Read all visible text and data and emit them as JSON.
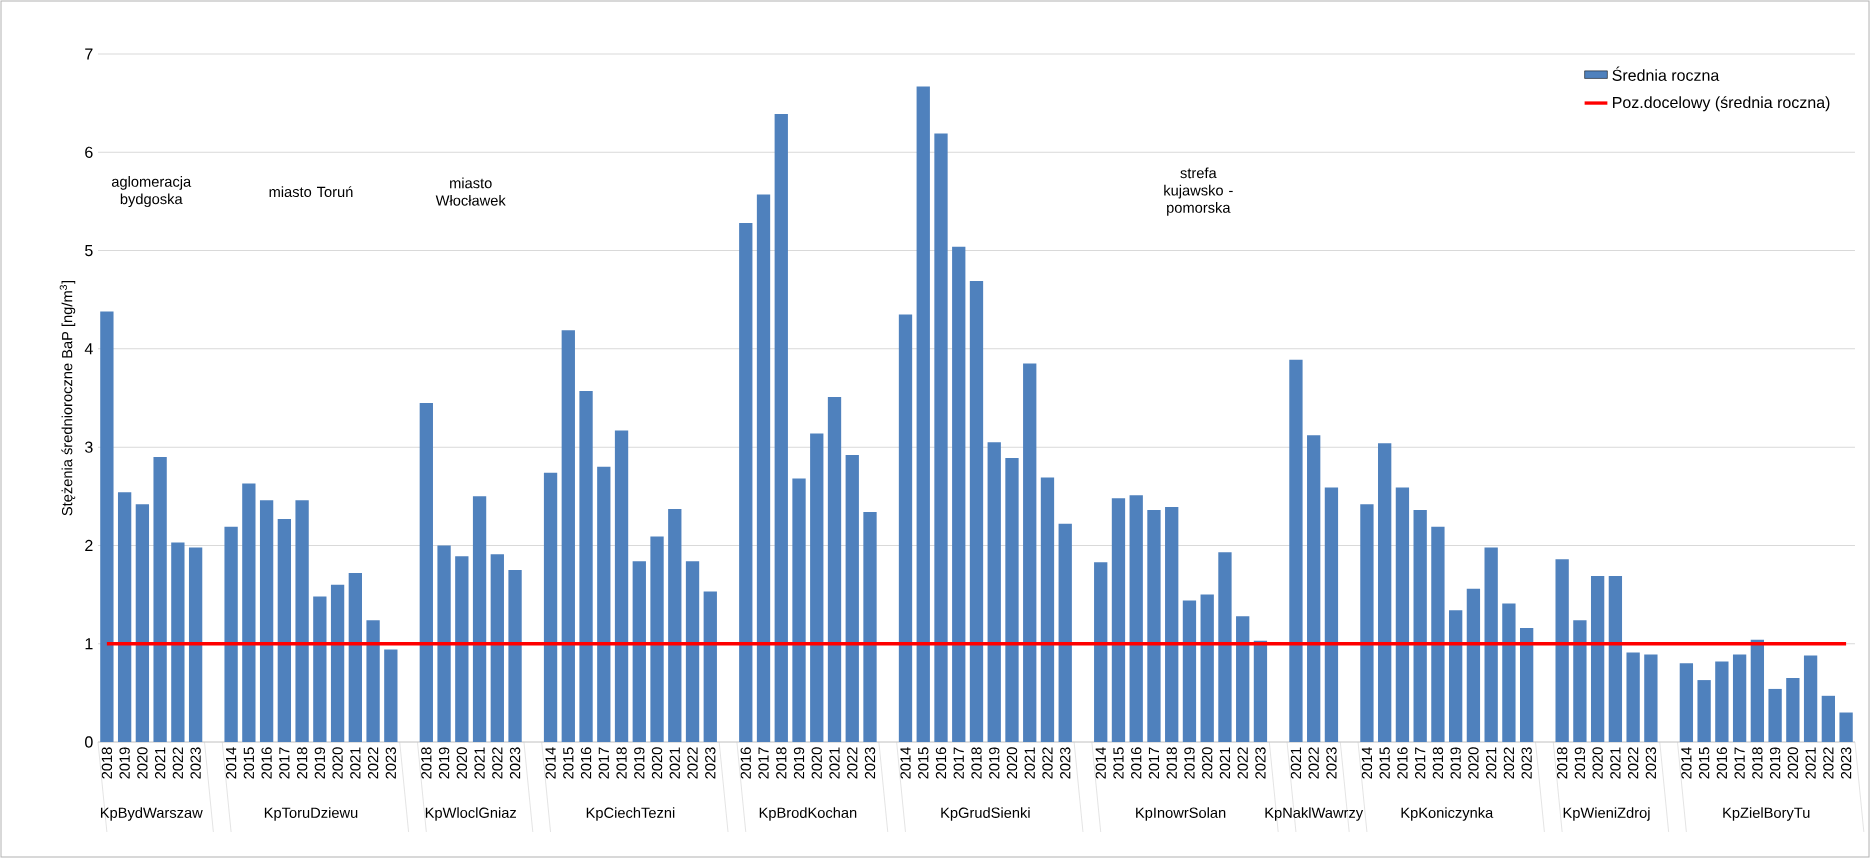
{
  "chart_data": {
    "type": "bar",
    "ylabel": "Stężenia średnioroczne BaP [ng/m$^{3}$]",
    "categories": [
      "2018",
      "2019",
      "2020",
      "2021",
      "2022",
      "2023",
      null,
      "2014",
      "2015",
      "2016",
      "2017",
      "2018",
      "2019",
      "2020",
      "2021",
      "2022",
      "2023",
      null,
      "2018",
      "2019",
      "2020",
      "2021",
      "2022",
      "2023",
      null,
      "2014",
      "2015",
      "2016",
      "2017",
      "2018",
      "2019",
      "2020",
      "2021",
      "2022",
      "2023",
      null,
      "2016",
      "2017",
      "2018",
      "2019",
      "2020",
      "2021",
      "2022",
      "2023",
      null,
      "2014",
      "2015",
      "2016",
      "2017",
      "2018",
      "2019",
      "2020",
      "2021",
      "2022",
      "2023",
      null,
      "2014",
      "2015",
      "2016",
      "2017",
      "2018",
      "2019",
      "2020",
      "2021",
      "2022",
      "2023",
      null,
      "2021",
      "2022",
      "2023",
      null,
      "2014",
      "2015",
      "2016",
      "2017",
      "2018",
      "2019",
      "2020",
      "2021",
      "2022",
      "2023",
      null,
      "2018",
      "2019",
      "2020",
      "2021",
      "2022",
      "2023",
      null,
      "2014",
      "2015",
      "2016",
      "2017",
      "2018",
      "2019",
      "2020",
      "2021",
      "2022",
      "2023"
    ],
    "series": [
      {
        "name": "Średnia roczna",
        "color": "#4f81bd",
        "values": [
          4.38,
          2.54,
          2.42,
          2.9,
          2.03,
          1.98,
          null,
          2.19,
          2.63,
          2.46,
          2.27,
          2.46,
          1.48,
          1.6,
          1.72,
          1.24,
          0.94,
          null,
          3.45,
          2.0,
          1.89,
          2.5,
          1.91,
          1.75,
          null,
          2.74,
          4.19,
          3.57,
          2.8,
          3.17,
          1.84,
          2.09,
          2.37,
          1.84,
          1.53,
          null,
          5.28,
          5.57,
          6.39,
          2.68,
          3.14,
          3.51,
          2.92,
          2.34,
          null,
          4.35,
          6.67,
          6.19,
          5.04,
          4.69,
          3.05,
          2.89,
          3.85,
          2.69,
          2.22,
          null,
          1.83,
          2.48,
          2.51,
          2.36,
          2.39,
          1.44,
          1.5,
          1.93,
          1.28,
          1.03,
          null,
          3.89,
          3.12,
          2.59,
          null,
          2.42,
          3.04,
          2.59,
          2.36,
          2.19,
          1.34,
          1.56,
          1.98,
          1.41,
          1.16,
          null,
          1.86,
          1.24,
          1.69,
          1.69,
          0.91,
          0.89,
          null,
          0.8,
          0.63,
          0.82,
          0.89,
          1.04,
          0.54,
          0.65,
          0.88,
          0.47,
          0.3
        ]
      }
    ],
    "ylim": [
      0,
      7
    ],
    "yticks": [
      0,
      1,
      2,
      3,
      4,
      5,
      6,
      7
    ],
    "grid": "y",
    "legend": "top right",
    "ref_lines": [
      {
        "axis": "y",
        "value": 1,
        "label": "Poz.docelowy (średnia roczna)",
        "color": "#ff0000"
      }
    ],
    "annotations": [
      "KpBydWarszaw",
      "KpToruDziewu",
      "KpWloclGniaz",
      "KpCiechTezni",
      "KpBrodKochan",
      "KpGrudSienki",
      "KpInowrSolan",
      "KpNaklWawrzy",
      "KpKoniczynka",
      "KpWieniZdroj",
      "KpZielBoryTu",
      "aglomeracja bydgoska",
      "miasto Toruń",
      "miasto Włocławek",
      "strefa kujawsko - pomorska"
    ]
  }
}
